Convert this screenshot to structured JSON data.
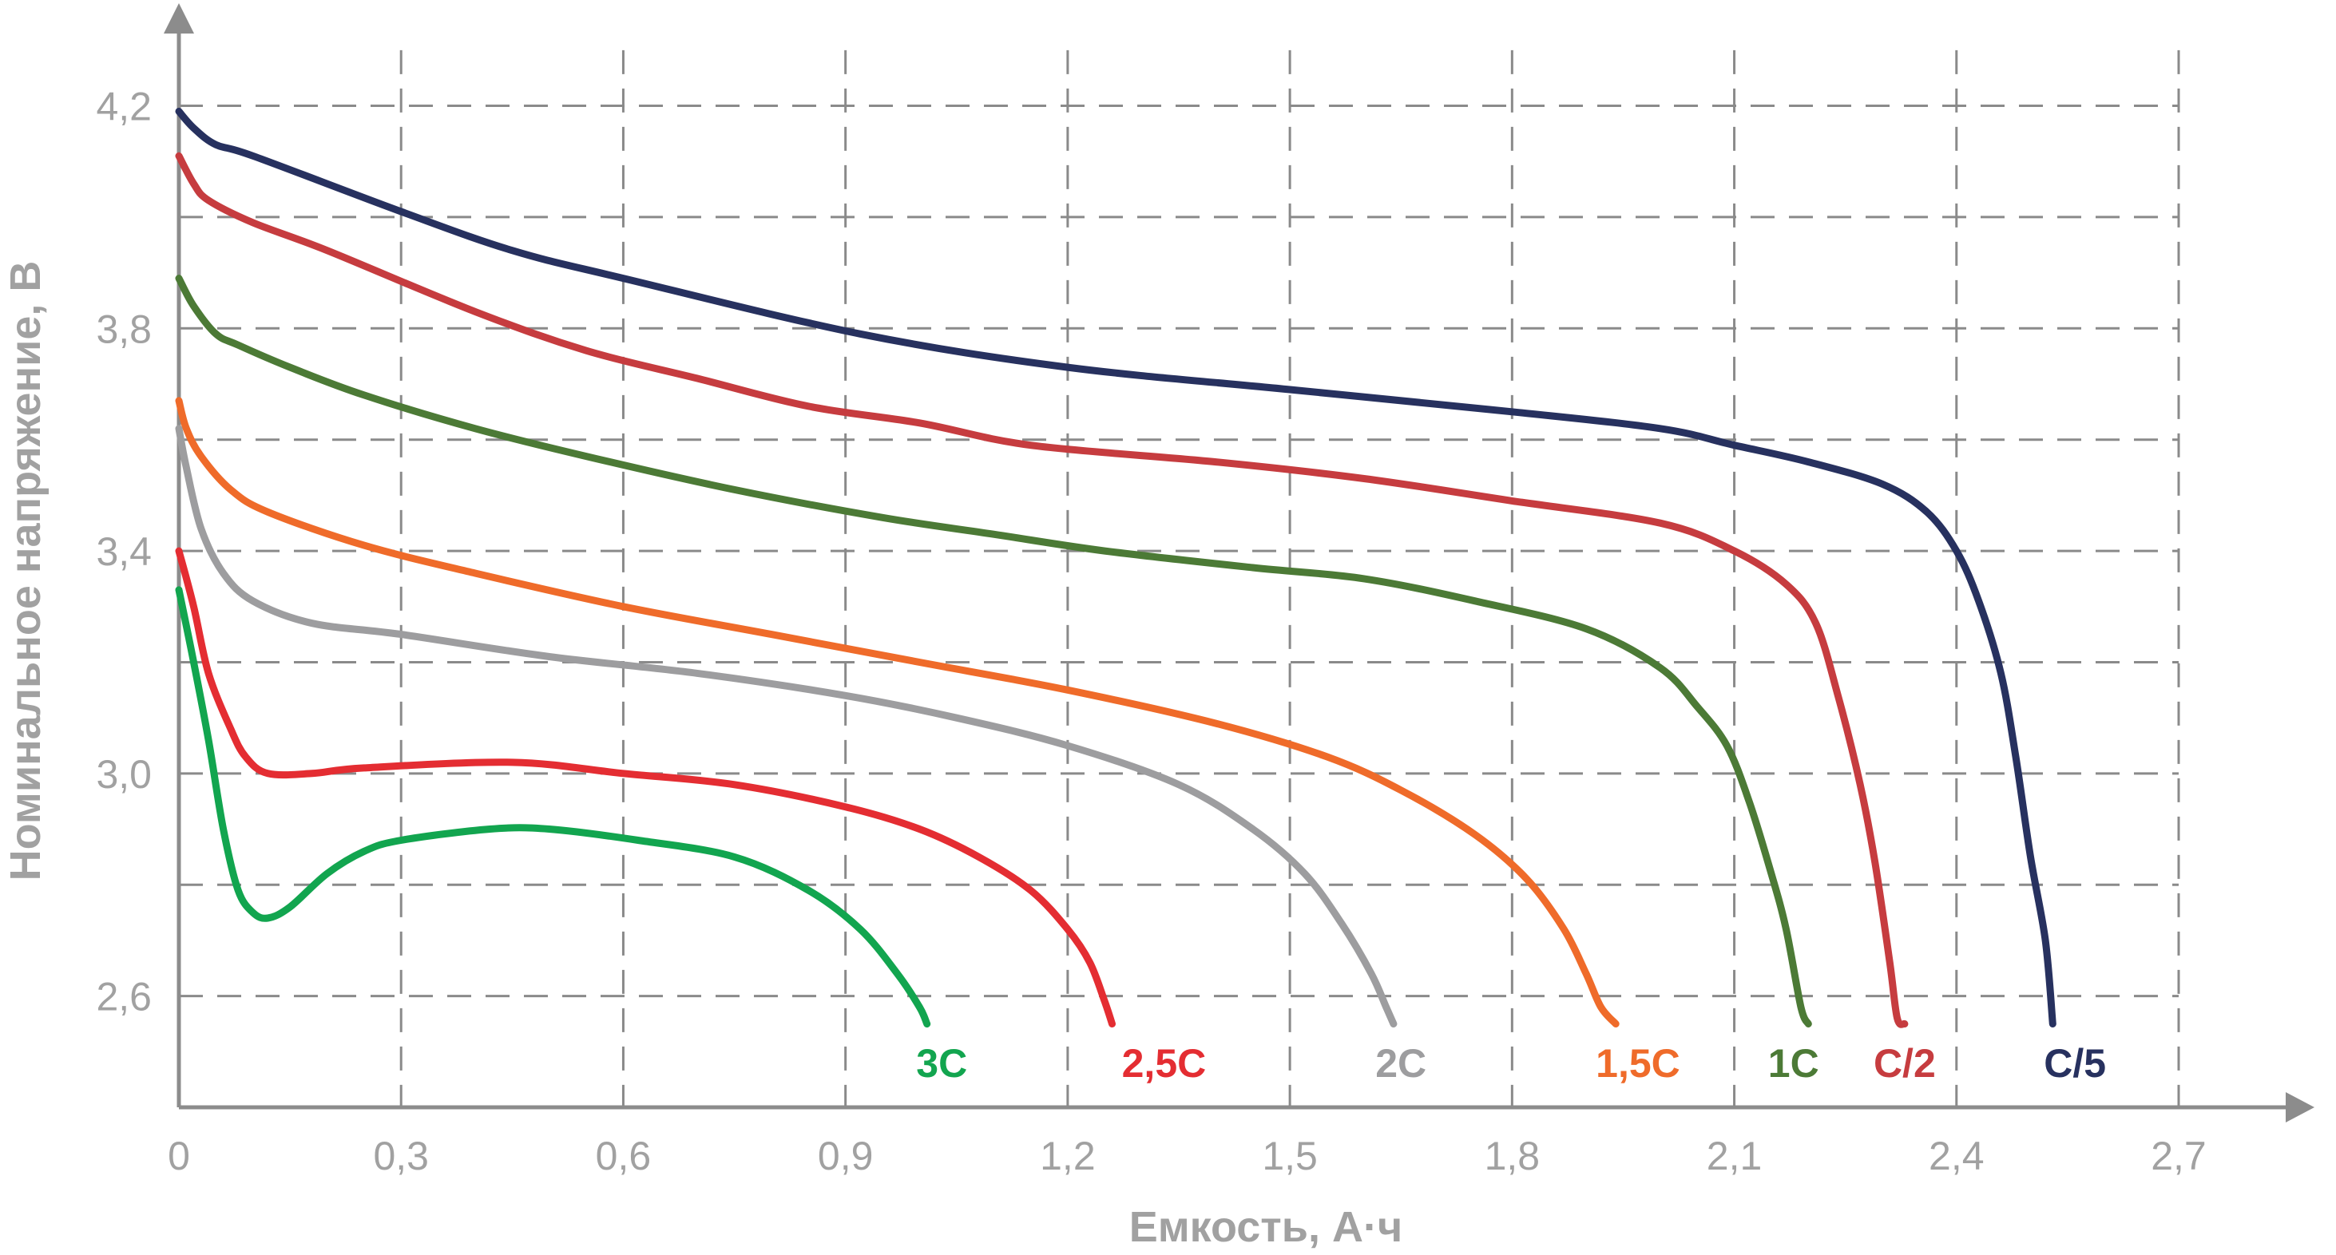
{
  "chart_data": {
    "type": "line",
    "title": "",
    "xlabel": "Емкость, А·ч",
    "ylabel": "Номинальное напряжение, В",
    "xlim": [
      0,
      2.7
    ],
    "ylim": [
      2.4,
      4.35
    ],
    "grid": true,
    "x_ticks": [
      {
        "value": 0.0,
        "label": "0"
      },
      {
        "value": 0.3,
        "label": "0,3"
      },
      {
        "value": 0.6,
        "label": "0,6"
      },
      {
        "value": 0.9,
        "label": "0,9"
      },
      {
        "value": 1.2,
        "label": "1,2"
      },
      {
        "value": 1.5,
        "label": "1,5"
      },
      {
        "value": 1.8,
        "label": "1,8"
      },
      {
        "value": 2.1,
        "label": "2,1"
      },
      {
        "value": 2.4,
        "label": "2,4"
      },
      {
        "value": 2.7,
        "label": "2,7"
      }
    ],
    "y_ticks": [
      {
        "value": 2.6,
        "label": "2,6"
      },
      {
        "value": 3.0,
        "label": "3,0"
      },
      {
        "value": 3.4,
        "label": "3,4"
      },
      {
        "value": 3.8,
        "label": "3,8"
      },
      {
        "value": 4.2,
        "label": "4,2"
      }
    ],
    "y_minor_gridlines": [
      2.8,
      3.2,
      3.6,
      4.0
    ],
    "series": [
      {
        "name": "C/5",
        "color": "#27315f",
        "x": [
          0.0,
          0.02,
          0.05,
          0.1,
          0.3,
          0.45,
          0.6,
          0.92,
          1.2,
          1.5,
          1.8,
          2.0,
          2.1,
          2.2,
          2.3,
          2.36,
          2.4,
          2.43,
          2.46,
          2.48,
          2.5,
          2.52,
          2.53
        ],
        "y": [
          4.19,
          4.16,
          4.13,
          4.11,
          4.01,
          3.94,
          3.89,
          3.79,
          3.73,
          3.69,
          3.65,
          3.62,
          3.59,
          3.56,
          3.52,
          3.47,
          3.4,
          3.31,
          3.18,
          3.03,
          2.85,
          2.7,
          2.55
        ]
      },
      {
        "name": "C/2",
        "color": "#c63c3f",
        "x": [
          0.0,
          0.02,
          0.04,
          0.1,
          0.2,
          0.4,
          0.55,
          0.7,
          0.85,
          1.0,
          1.15,
          1.4,
          1.6,
          1.8,
          2.0,
          2.1,
          2.17,
          2.21,
          2.24,
          2.27,
          2.29,
          2.31,
          2.32,
          2.33
        ],
        "y": [
          4.11,
          4.06,
          4.03,
          3.99,
          3.94,
          3.83,
          3.76,
          3.71,
          3.66,
          3.63,
          3.59,
          3.56,
          3.53,
          3.49,
          3.45,
          3.4,
          3.34,
          3.27,
          3.14,
          2.98,
          2.84,
          2.66,
          2.56,
          2.55
        ]
      },
      {
        "name": "1C",
        "color": "#4c7a36",
        "x": [
          0.0,
          0.02,
          0.05,
          0.08,
          0.15,
          0.25,
          0.4,
          0.55,
          0.75,
          0.95,
          1.1,
          1.25,
          1.45,
          1.6,
          1.75,
          1.9,
          2.0,
          2.05,
          2.09,
          2.12,
          2.15,
          2.17,
          2.19,
          2.2
        ],
        "y": [
          3.89,
          3.84,
          3.79,
          3.77,
          3.73,
          3.68,
          3.62,
          3.57,
          3.51,
          3.46,
          3.43,
          3.4,
          3.37,
          3.35,
          3.31,
          3.26,
          3.19,
          3.12,
          3.05,
          2.95,
          2.82,
          2.72,
          2.58,
          2.55
        ]
      },
      {
        "name": "1,5C",
        "color": "#ef6b2a",
        "x": [
          0.0,
          0.01,
          0.03,
          0.07,
          0.12,
          0.25,
          0.4,
          0.6,
          0.8,
          1.0,
          1.2,
          1.4,
          1.55,
          1.65,
          1.75,
          1.82,
          1.87,
          1.9,
          1.92,
          1.94
        ],
        "y": [
          3.67,
          3.62,
          3.57,
          3.51,
          3.47,
          3.41,
          3.36,
          3.3,
          3.25,
          3.2,
          3.15,
          3.09,
          3.03,
          2.97,
          2.89,
          2.81,
          2.72,
          2.64,
          2.58,
          2.55
        ]
      },
      {
        "name": "2C",
        "color": "#9d9d9f",
        "x": [
          0.0,
          0.01,
          0.03,
          0.06,
          0.1,
          0.18,
          0.3,
          0.5,
          0.7,
          0.9,
          1.05,
          1.2,
          1.35,
          1.45,
          1.52,
          1.57,
          1.61,
          1.63,
          1.64
        ],
        "y": [
          3.62,
          3.55,
          3.44,
          3.36,
          3.31,
          3.27,
          3.25,
          3.21,
          3.18,
          3.14,
          3.1,
          3.05,
          2.98,
          2.9,
          2.82,
          2.73,
          2.64,
          2.58,
          2.55
        ]
      },
      {
        "name": "2,5C",
        "color": "#e42d32",
        "x": [
          0.0,
          0.02,
          0.04,
          0.07,
          0.09,
          0.12,
          0.18,
          0.25,
          0.45,
          0.6,
          0.75,
          0.9,
          1.0,
          1.08,
          1.15,
          1.2,
          1.23,
          1.25,
          1.26
        ],
        "y": [
          3.4,
          3.3,
          3.18,
          3.08,
          3.03,
          3.0,
          3.0,
          3.01,
          3.02,
          3.0,
          2.98,
          2.94,
          2.9,
          2.85,
          2.79,
          2.72,
          2.66,
          2.59,
          2.55
        ]
      },
      {
        "name": "3C",
        "color": "#12a54f",
        "x": [
          0.0,
          0.02,
          0.04,
          0.06,
          0.08,
          0.1,
          0.12,
          0.15,
          0.2,
          0.25,
          0.3,
          0.42,
          0.5,
          0.62,
          0.75,
          0.85,
          0.92,
          0.97,
          1.0,
          1.01
        ],
        "y": [
          3.33,
          3.2,
          3.06,
          2.9,
          2.79,
          2.75,
          2.74,
          2.76,
          2.82,
          2.86,
          2.88,
          2.9,
          2.9,
          2.88,
          2.85,
          2.79,
          2.72,
          2.64,
          2.58,
          2.55
        ]
      }
    ],
    "series_labels": [
      {
        "text": "3C",
        "color": "#12a54f",
        "x": 1.03,
        "y": 2.48
      },
      {
        "text": "2,5C",
        "color": "#e42d32",
        "x": 1.33,
        "y": 2.48
      },
      {
        "text": "2C",
        "color": "#9d9d9f",
        "x": 1.65,
        "y": 2.48
      },
      {
        "text": "1,5C",
        "color": "#ef6b2a",
        "x": 1.97,
        "y": 2.48
      },
      {
        "text": "1C",
        "color": "#4c7a36",
        "x": 2.18,
        "y": 2.48
      },
      {
        "text": "C/2",
        "color": "#c63c3f",
        "x": 2.33,
        "y": 2.48
      },
      {
        "text": "C/5",
        "color": "#27315f",
        "x": 2.56,
        "y": 2.48
      }
    ]
  }
}
